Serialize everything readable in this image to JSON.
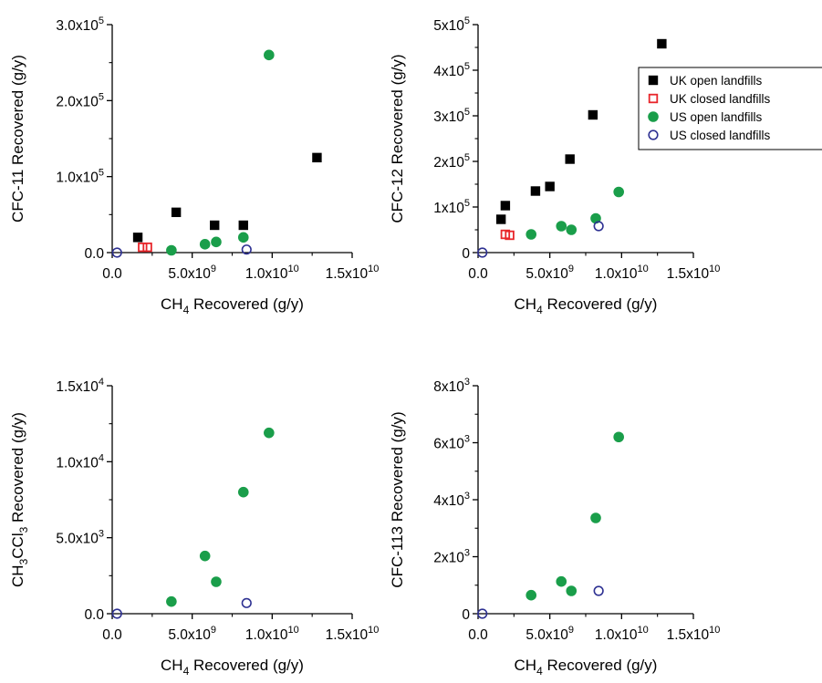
{
  "chart_data": [
    {
      "id": "cfc11",
      "type": "scatter",
      "xlabel": "CH4 Recovered (g/y)",
      "ylabel": "CFC-11 Recovered (g/y)",
      "xlim": [
        0,
        15000000000
      ],
      "ylim": [
        0,
        300000
      ],
      "xticks": [
        {
          "v": 0,
          "m": "0.0"
        },
        {
          "v": 5000000000,
          "m": "5.0x10",
          "e": "9"
        },
        {
          "v": 10000000000,
          "m": "1.0x10",
          "e": "10"
        },
        {
          "v": 15000000000,
          "m": "1.5x10",
          "e": "10"
        }
      ],
      "yticks": [
        {
          "v": 0,
          "m": "0.0"
        },
        {
          "v": 100000,
          "m": "1.0x10",
          "e": "5"
        },
        {
          "v": 200000,
          "m": "2.0x10",
          "e": "5"
        },
        {
          "v": 300000,
          "m": "3.0x10",
          "e": "5"
        }
      ],
      "series": [
        {
          "name": "UK open landfills",
          "marker": "square-filled",
          "color": "#000000",
          "points": [
            [
              1600000000,
              20000
            ],
            [
              4000000000,
              53000
            ],
            [
              6400000000,
              36000
            ],
            [
              8200000000,
              36000
            ],
            [
              12800000000,
              125000
            ]
          ]
        },
        {
          "name": "UK closed landfills",
          "marker": "square-open",
          "color": "#e8262b",
          "points": [
            [
              1900000000,
              7000
            ],
            [
              2200000000,
              7000
            ]
          ]
        },
        {
          "name": "US open landfills",
          "marker": "circle-filled",
          "color": "#1a9e4a",
          "points": [
            [
              3700000000,
              3000
            ],
            [
              5800000000,
              11000
            ],
            [
              6500000000,
              14000
            ],
            [
              8200000000,
              20000
            ],
            [
              9800000000,
              260000
            ]
          ]
        },
        {
          "name": "US closed landfills",
          "marker": "circle-open",
          "color": "#2e3192",
          "points": [
            [
              300000000,
              0
            ],
            [
              8400000000,
              4000
            ]
          ]
        }
      ]
    },
    {
      "id": "cfc12",
      "type": "scatter",
      "xlabel": "CH4 Recovered (g/y)",
      "ylabel": "CFC-12 Recovered (g/y)",
      "xlim": [
        0,
        15000000000
      ],
      "ylim": [
        0,
        500000
      ],
      "xticks": [
        {
          "v": 0,
          "m": "0.0"
        },
        {
          "v": 5000000000,
          "m": "5.0x10",
          "e": "9"
        },
        {
          "v": 10000000000,
          "m": "1.0x10",
          "e": "10"
        },
        {
          "v": 15000000000,
          "m": "1.5x10",
          "e": "10"
        }
      ],
      "yticks": [
        {
          "v": 0,
          "m": "0"
        },
        {
          "v": 100000,
          "m": "1x10",
          "e": "5"
        },
        {
          "v": 200000,
          "m": "2x10",
          "e": "5"
        },
        {
          "v": 300000,
          "m": "3x10",
          "e": "5"
        },
        {
          "v": 400000,
          "m": "4x10",
          "e": "5"
        },
        {
          "v": 500000,
          "m": "5x10",
          "e": "5"
        }
      ],
      "legend": {
        "position": "top-right",
        "entries": [
          "UK open landfills",
          "UK closed landfills",
          "US open landfills",
          "US closed landfills"
        ]
      },
      "series": [
        {
          "name": "UK open landfills",
          "marker": "square-filled",
          "color": "#000000",
          "points": [
            [
              1600000000,
              73000
            ],
            [
              1900000000,
              103000
            ],
            [
              4000000000,
              135000
            ],
            [
              5000000000,
              145000
            ],
            [
              6400000000,
              205000
            ],
            [
              8000000000,
              302000
            ],
            [
              12800000000,
              458000
            ]
          ]
        },
        {
          "name": "UK closed landfills",
          "marker": "square-open",
          "color": "#e8262b",
          "points": [
            [
              1900000000,
              40000
            ],
            [
              2200000000,
              38000
            ]
          ]
        },
        {
          "name": "US open landfills",
          "marker": "circle-filled",
          "color": "#1a9e4a",
          "points": [
            [
              3700000000,
              40000
            ],
            [
              5800000000,
              58000
            ],
            [
              6500000000,
              50000
            ],
            [
              8200000000,
              75000
            ],
            [
              9800000000,
              133000
            ]
          ]
        },
        {
          "name": "US closed landfills",
          "marker": "circle-open",
          "color": "#2e3192",
          "points": [
            [
              300000000,
              0
            ],
            [
              8400000000,
              58000
            ]
          ]
        }
      ]
    },
    {
      "id": "ch3ccl3",
      "type": "scatter",
      "xlabel": "CH4 Recovered (g/y)",
      "ylabel": "CH3CCl3 Recovered (g/y)",
      "xlim": [
        0,
        15000000000
      ],
      "ylim": [
        0,
        15000
      ],
      "xticks": [
        {
          "v": 0,
          "m": "0.0"
        },
        {
          "v": 5000000000,
          "m": "5.0x10",
          "e": "9"
        },
        {
          "v": 10000000000,
          "m": "1.0x10",
          "e": "10"
        },
        {
          "v": 15000000000,
          "m": "1.5x10",
          "e": "10"
        }
      ],
      "yticks": [
        {
          "v": 0,
          "m": "0.0"
        },
        {
          "v": 5000,
          "m": "5.0x10",
          "e": "3"
        },
        {
          "v": 10000,
          "m": "1.0x10",
          "e": "4"
        },
        {
          "v": 15000,
          "m": "1.5x10",
          "e": "4"
        }
      ],
      "series": [
        {
          "name": "US open landfills",
          "marker": "circle-filled",
          "color": "#1a9e4a",
          "points": [
            [
              3700000000,
              800
            ],
            [
              5800000000,
              3800
            ],
            [
              6500000000,
              2100
            ],
            [
              8200000000,
              8000
            ],
            [
              9800000000,
              11900
            ]
          ]
        },
        {
          "name": "US closed landfills",
          "marker": "circle-open",
          "color": "#2e3192",
          "points": [
            [
              300000000,
              0
            ],
            [
              8400000000,
              700
            ]
          ]
        }
      ]
    },
    {
      "id": "cfc113",
      "type": "scatter",
      "xlabel": "CH4 Recovered (g/y)",
      "ylabel": "CFC-113 Recovered (g/y)",
      "xlim": [
        0,
        15000000000
      ],
      "ylim": [
        0,
        8000
      ],
      "xticks": [
        {
          "v": 0,
          "m": "0.0"
        },
        {
          "v": 5000000000,
          "m": "5.0x10",
          "e": "9"
        },
        {
          "v": 10000000000,
          "m": "1.0x10",
          "e": "10"
        },
        {
          "v": 15000000000,
          "m": "1.5x10",
          "e": "10"
        }
      ],
      "yticks": [
        {
          "v": 0,
          "m": "0"
        },
        {
          "v": 2000,
          "m": "2x10",
          "e": "3"
        },
        {
          "v": 4000,
          "m": "4x10",
          "e": "3"
        },
        {
          "v": 6000,
          "m": "6x10",
          "e": "3"
        },
        {
          "v": 8000,
          "m": "8x10",
          "e": "3"
        }
      ],
      "series": [
        {
          "name": "US open landfills",
          "marker": "circle-filled",
          "color": "#1a9e4a",
          "points": [
            [
              3700000000,
              650
            ],
            [
              5800000000,
              1130
            ],
            [
              6500000000,
              800
            ],
            [
              8200000000,
              3360
            ],
            [
              9800000000,
              6200
            ]
          ]
        },
        {
          "name": "US closed landfills",
          "marker": "circle-open",
          "color": "#2e3192",
          "points": [
            [
              300000000,
              0
            ],
            [
              8400000000,
              800
            ]
          ]
        }
      ]
    }
  ]
}
